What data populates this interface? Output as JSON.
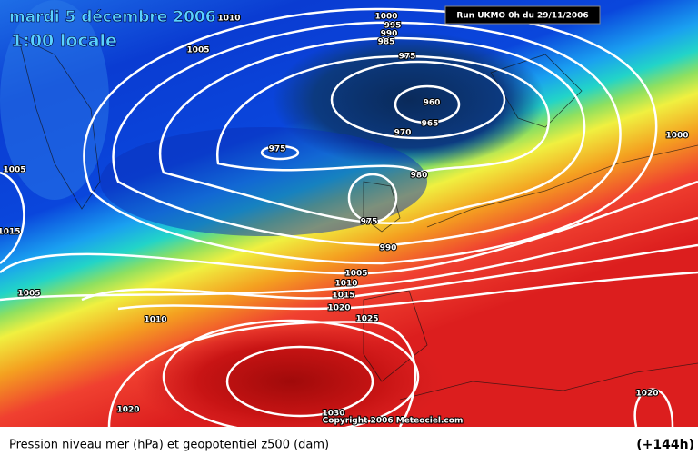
{
  "header": {
    "date": "mardi 5 décembre 2006",
    "time": "1:00 locale"
  },
  "run": "Run UKMO 0h du 29/11/2006",
  "isobar_labels": [
    "1010",
    "1000",
    "995",
    "990",
    "985",
    "975",
    "960",
    "965",
    "970",
    "975",
    "980",
    "975",
    "990",
    "1005",
    "1015",
    "1005",
    "1010",
    "1005",
    "1010",
    "1015",
    "1020",
    "1025",
    "1020",
    "1030",
    "1020",
    "1000",
    "1005"
  ],
  "copyright": "Copyright 2006 Meteociel.com",
  "caption": "Pression niveau mer (hPa) et geopotentiel z500 (dam)",
  "lead_time": "(+144h)"
}
